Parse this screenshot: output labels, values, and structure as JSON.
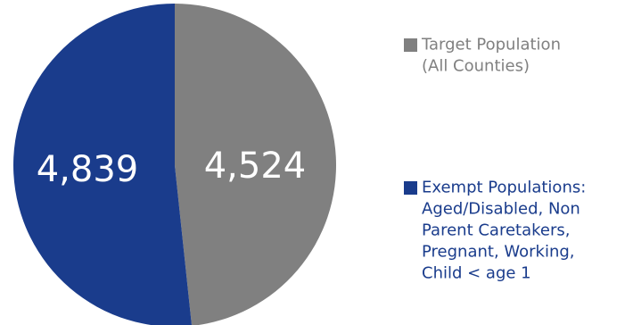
{
  "chart_data": {
    "type": "pie",
    "title": "",
    "slices": [
      {
        "label": "Target Population (All Counties)",
        "value": 4524,
        "display": "4,524",
        "color": "#808080"
      },
      {
        "label": "Exempt Populations: Aged/Disabled, Non Parent Caretakers, Pregnant, Working, Child < age 1",
        "value": 4839,
        "display": "4,839",
        "color": "#1a3c8c"
      }
    ],
    "legend": {
      "placement": "right",
      "entries": [
        {
          "lines": [
            "Target Population",
            "(All Counties)"
          ],
          "color": "#808080"
        },
        {
          "lines": [
            "Exempt Populations:",
            "Aged/Disabled, Non",
            "Parent Caretakers,",
            "Pregnant, Working,",
            "Child < age 1"
          ],
          "color": "#1a3c8c"
        }
      ]
    }
  }
}
